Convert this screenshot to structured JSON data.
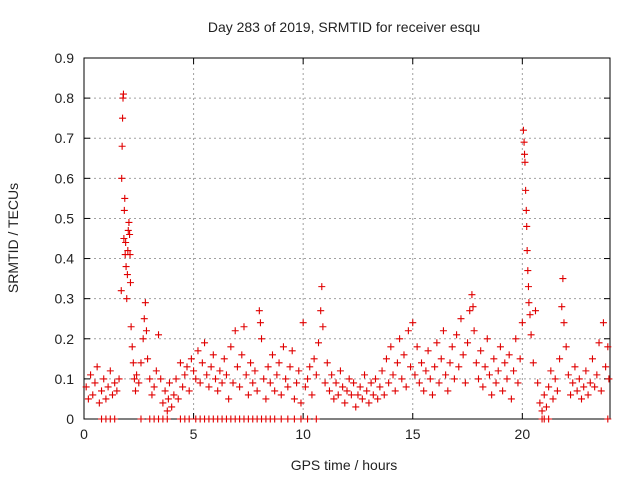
{
  "chart_data": {
    "type": "scatter",
    "title": "Day 283 of 2019, SRMTID for receiver esqu",
    "xlabel": "GPS time / hours",
    "ylabel": "SRMTID / TECUs",
    "xlim": [
      0,
      24
    ],
    "ylim": [
      0,
      0.9
    ],
    "xticks": [
      0,
      5,
      10,
      15,
      20
    ],
    "xtick_labels": [
      "0",
      "5",
      "10",
      "15",
      "20"
    ],
    "yticks": [
      0,
      0.1,
      0.2,
      0.3,
      0.4,
      0.5,
      0.6,
      0.7,
      0.8,
      0.9
    ],
    "ytick_labels": [
      "0",
      "0.1",
      "0.2",
      "0.3",
      "0.4",
      "0.5",
      "0.6",
      "0.7",
      "0.8",
      "0.9"
    ],
    "grid": true,
    "marker": "+",
    "series": [
      {
        "name": "SRMTID",
        "color": "#e00000",
        "points": [
          [
            0.1,
            0.08
          ],
          [
            0.2,
            0.05
          ],
          [
            0.3,
            0.11
          ],
          [
            0.4,
            0.06
          ],
          [
            0.5,
            0.09
          ],
          [
            0.6,
            0.13
          ],
          [
            0.7,
            0.04
          ],
          [
            0.8,
            0.07
          ],
          [
            0.9,
            0.1
          ],
          [
            1.0,
            0.05
          ],
          [
            1.1,
            0.08
          ],
          [
            1.2,
            0.12
          ],
          [
            1.3,
            0.06
          ],
          [
            1.4,
            0.09
          ],
          [
            1.5,
            0.07
          ],
          [
            1.6,
            0.1
          ],
          [
            1.7,
            0.32
          ],
          [
            1.72,
            0.6
          ],
          [
            1.74,
            0.68
          ],
          [
            1.76,
            0.75
          ],
          [
            1.78,
            0.8
          ],
          [
            1.8,
            0.81
          ],
          [
            1.82,
            0.45
          ],
          [
            1.84,
            0.52
          ],
          [
            1.86,
            0.55
          ],
          [
            1.88,
            0.41
          ],
          [
            1.9,
            0.44
          ],
          [
            1.92,
            0.38
          ],
          [
            1.95,
            0.3
          ],
          [
            1.98,
            0.36
          ],
          [
            2.0,
            0.42
          ],
          [
            2.02,
            0.47
          ],
          [
            2.05,
            0.49
          ],
          [
            2.08,
            0.46
          ],
          [
            2.1,
            0.41
          ],
          [
            2.12,
            0.34
          ],
          [
            2.15,
            0.23
          ],
          [
            2.2,
            0.18
          ],
          [
            2.25,
            0.14
          ],
          [
            2.3,
            0.1
          ],
          [
            2.35,
            0.07
          ],
          [
            2.4,
            0.11
          ],
          [
            2.5,
            0.09
          ],
          [
            2.6,
            0.14
          ],
          [
            2.7,
            0.2
          ],
          [
            2.75,
            0.25
          ],
          [
            2.8,
            0.29
          ],
          [
            2.85,
            0.22
          ],
          [
            2.9,
            0.15
          ],
          [
            3.0,
            0.1
          ],
          [
            3.1,
            0.06
          ],
          [
            3.2,
            0.08
          ],
          [
            3.3,
            0.12
          ],
          [
            3.4,
            0.21
          ],
          [
            3.5,
            0.1
          ],
          [
            3.6,
            0.04
          ],
          [
            3.7,
            0.07
          ],
          [
            3.8,
            0.02
          ],
          [
            3.85,
            0.05
          ],
          [
            3.9,
            0.09
          ],
          [
            4.0,
            0.03
          ],
          [
            4.1,
            0.06
          ],
          [
            4.2,
            0.1
          ],
          [
            4.3,
            0.05
          ],
          [
            4.4,
            0.14
          ],
          [
            4.5,
            0.08
          ],
          [
            4.6,
            0.11
          ],
          [
            4.7,
            0.13
          ],
          [
            4.8,
            0.07
          ],
          [
            4.9,
            0.15
          ],
          [
            5.0,
            0.12
          ],
          [
            5.1,
            0.1
          ],
          [
            5.2,
            0.17
          ],
          [
            5.3,
            0.09
          ],
          [
            5.4,
            0.14
          ],
          [
            5.5,
            0.19
          ],
          [
            5.6,
            0.11
          ],
          [
            5.7,
            0.08
          ],
          [
            5.8,
            0.13
          ],
          [
            5.9,
            0.16
          ],
          [
            6.0,
            0.1
          ],
          [
            6.1,
            0.07
          ],
          [
            6.2,
            0.12
          ],
          [
            6.3,
            0.09
          ],
          [
            6.4,
            0.15
          ],
          [
            6.5,
            0.11
          ],
          [
            6.6,
            0.05
          ],
          [
            6.7,
            0.18
          ],
          [
            6.8,
            0.09
          ],
          [
            6.9,
            0.22
          ],
          [
            7.0,
            0.13
          ],
          [
            7.1,
            0.08
          ],
          [
            7.2,
            0.16
          ],
          [
            7.3,
            0.23
          ],
          [
            7.4,
            0.11
          ],
          [
            7.5,
            0.06
          ],
          [
            7.6,
            0.14
          ],
          [
            7.7,
            0.09
          ],
          [
            7.8,
            0.12
          ],
          [
            7.9,
            0.07
          ],
          [
            8.0,
            0.27
          ],
          [
            8.05,
            0.24
          ],
          [
            8.1,
            0.2
          ],
          [
            8.2,
            0.1
          ],
          [
            8.3,
            0.05
          ],
          [
            8.4,
            0.13
          ],
          [
            8.5,
            0.09
          ],
          [
            8.6,
            0.16
          ],
          [
            8.7,
            0.07
          ],
          [
            8.8,
            0.11
          ],
          [
            8.9,
            0.14
          ],
          [
            9.0,
            0.06
          ],
          [
            9.1,
            0.18
          ],
          [
            9.2,
            0.1
          ],
          [
            9.3,
            0.08
          ],
          [
            9.4,
            0.13
          ],
          [
            9.5,
            0.17
          ],
          [
            9.6,
            0.05
          ],
          [
            9.7,
            0.09
          ],
          [
            9.8,
            0.12
          ],
          [
            9.9,
            0.04
          ],
          [
            10.0,
            0.24
          ],
          [
            10.1,
            0.08
          ],
          [
            10.2,
            0.1
          ],
          [
            10.3,
            0.13
          ],
          [
            10.4,
            0.06
          ],
          [
            10.5,
            0.15
          ],
          [
            10.6,
            0.11
          ],
          [
            10.7,
            0.19
          ],
          [
            10.8,
            0.27
          ],
          [
            10.85,
            0.33
          ],
          [
            10.9,
            0.23
          ],
          [
            11.0,
            0.09
          ],
          [
            11.1,
            0.14
          ],
          [
            11.2,
            0.07
          ],
          [
            11.3,
            0.11
          ],
          [
            11.4,
            0.05
          ],
          [
            11.5,
            0.09
          ],
          [
            11.6,
            0.06
          ],
          [
            11.7,
            0.12
          ],
          [
            11.8,
            0.08
          ],
          [
            11.9,
            0.04
          ],
          [
            12.0,
            0.07
          ],
          [
            12.1,
            0.1
          ],
          [
            12.2,
            0.06
          ],
          [
            12.3,
            0.09
          ],
          [
            12.4,
            0.03
          ],
          [
            12.5,
            0.06
          ],
          [
            12.6,
            0.08
          ],
          [
            12.7,
            0.05
          ],
          [
            12.8,
            0.11
          ],
          [
            12.9,
            0.07
          ],
          [
            13.0,
            0.04
          ],
          [
            13.1,
            0.09
          ],
          [
            13.2,
            0.06
          ],
          [
            13.3,
            0.1
          ],
          [
            13.4,
            0.05
          ],
          [
            13.5,
            0.08
          ],
          [
            13.6,
            0.12
          ],
          [
            13.7,
            0.06
          ],
          [
            13.8,
            0.15
          ],
          [
            13.9,
            0.09
          ],
          [
            14.0,
            0.18
          ],
          [
            14.1,
            0.11
          ],
          [
            14.2,
            0.07
          ],
          [
            14.3,
            0.14
          ],
          [
            14.4,
            0.2
          ],
          [
            14.5,
            0.1
          ],
          [
            14.6,
            0.16
          ],
          [
            14.7,
            0.08
          ],
          [
            14.8,
            0.22
          ],
          [
            14.9,
            0.13
          ],
          [
            15.0,
            0.24
          ],
          [
            15.1,
            0.11
          ],
          [
            15.2,
            0.18
          ],
          [
            15.3,
            0.09
          ],
          [
            15.4,
            0.14
          ],
          [
            15.5,
            0.07
          ],
          [
            15.6,
            0.12
          ],
          [
            15.7,
            0.17
          ],
          [
            15.8,
            0.1
          ],
          [
            15.9,
            0.06
          ],
          [
            16.0,
            0.13
          ],
          [
            16.1,
            0.19
          ],
          [
            16.2,
            0.09
          ],
          [
            16.3,
            0.15
          ],
          [
            16.4,
            0.22
          ],
          [
            16.5,
            0.11
          ],
          [
            16.6,
            0.07
          ],
          [
            16.7,
            0.14
          ],
          [
            16.8,
            0.18
          ],
          [
            16.9,
            0.1
          ],
          [
            17.0,
            0.21
          ],
          [
            17.1,
            0.13
          ],
          [
            17.2,
            0.25
          ],
          [
            17.3,
            0.16
          ],
          [
            17.4,
            0.09
          ],
          [
            17.5,
            0.19
          ],
          [
            17.6,
            0.27
          ],
          [
            17.7,
            0.31
          ],
          [
            17.75,
            0.28
          ],
          [
            17.8,
            0.22
          ],
          [
            17.9,
            0.14
          ],
          [
            18.0,
            0.1
          ],
          [
            18.1,
            0.17
          ],
          [
            18.2,
            0.08
          ],
          [
            18.3,
            0.13
          ],
          [
            18.4,
            0.2
          ],
          [
            18.5,
            0.11
          ],
          [
            18.6,
            0.06
          ],
          [
            18.7,
            0.15
          ],
          [
            18.8,
            0.09
          ],
          [
            18.9,
            0.12
          ],
          [
            19.0,
            0.18
          ],
          [
            19.1,
            0.07
          ],
          [
            19.2,
            0.14
          ],
          [
            19.3,
            0.1
          ],
          [
            19.4,
            0.16
          ],
          [
            19.5,
            0.05
          ],
          [
            19.6,
            0.12
          ],
          [
            19.7,
            0.2
          ],
          [
            19.8,
            0.09
          ],
          [
            19.9,
            0.15
          ],
          [
            20.0,
            0.24
          ],
          [
            20.05,
            0.72
          ],
          [
            20.08,
            0.69
          ],
          [
            20.1,
            0.66
          ],
          [
            20.12,
            0.64
          ],
          [
            20.15,
            0.57
          ],
          [
            20.18,
            0.52
          ],
          [
            20.2,
            0.48
          ],
          [
            20.22,
            0.42
          ],
          [
            20.25,
            0.37
          ],
          [
            20.28,
            0.33
          ],
          [
            20.3,
            0.29
          ],
          [
            20.35,
            0.26
          ],
          [
            20.4,
            0.21
          ],
          [
            20.5,
            0.14
          ],
          [
            20.6,
            0.27
          ],
          [
            20.7,
            0.09
          ],
          [
            20.8,
            0.04
          ],
          [
            20.9,
            0.02
          ],
          [
            21.0,
            0.06
          ],
          [
            21.1,
            0.03
          ],
          [
            21.2,
            0.08
          ],
          [
            21.3,
            0.12
          ],
          [
            21.4,
            0.05
          ],
          [
            21.5,
            0.1
          ],
          [
            21.6,
            0.07
          ],
          [
            21.7,
            0.15
          ],
          [
            21.8,
            0.28
          ],
          [
            21.85,
            0.35
          ],
          [
            21.9,
            0.24
          ],
          [
            22.0,
            0.18
          ],
          [
            22.1,
            0.11
          ],
          [
            22.2,
            0.06
          ],
          [
            22.3,
            0.09
          ],
          [
            22.4,
            0.13
          ],
          [
            22.5,
            0.07
          ],
          [
            22.6,
            0.1
          ],
          [
            22.7,
            0.05
          ],
          [
            22.8,
            0.08
          ],
          [
            22.9,
            0.12
          ],
          [
            23.0,
            0.06
          ],
          [
            23.1,
            0.09
          ],
          [
            23.2,
            0.15
          ],
          [
            23.3,
            0.08
          ],
          [
            23.4,
            0.11
          ],
          [
            23.5,
            0.19
          ],
          [
            23.6,
            0.07
          ],
          [
            23.7,
            0.24
          ],
          [
            23.8,
            0.13
          ],
          [
            23.9,
            0.18
          ],
          [
            23.95,
            0.1
          ],
          [
            0.8,
            0
          ],
          [
            1.0,
            0
          ],
          [
            1.2,
            0
          ],
          [
            1.4,
            0
          ],
          [
            2.6,
            0
          ],
          [
            3.0,
            0
          ],
          [
            3.2,
            0
          ],
          [
            3.4,
            0
          ],
          [
            3.6,
            0
          ],
          [
            3.8,
            0
          ],
          [
            4.4,
            0
          ],
          [
            4.6,
            0
          ],
          [
            4.8,
            0
          ],
          [
            5.1,
            0
          ],
          [
            5.3,
            0
          ],
          [
            5.5,
            0
          ],
          [
            5.7,
            0
          ],
          [
            5.9,
            0
          ],
          [
            6.1,
            0
          ],
          [
            6.3,
            0
          ],
          [
            6.5,
            0
          ],
          [
            6.7,
            0
          ],
          [
            6.9,
            0
          ],
          [
            7.1,
            0
          ],
          [
            7.3,
            0
          ],
          [
            7.5,
            0
          ],
          [
            7.7,
            0
          ],
          [
            7.9,
            0
          ],
          [
            8.1,
            0
          ],
          [
            8.3,
            0
          ],
          [
            8.5,
            0
          ],
          [
            8.7,
            0
          ],
          [
            9.0,
            0
          ],
          [
            9.3,
            0
          ],
          [
            9.6,
            0
          ],
          [
            9.9,
            0
          ],
          [
            10.2,
            0
          ],
          [
            10.6,
            0
          ],
          [
            20.9,
            0
          ],
          [
            21.0,
            0
          ],
          [
            21.2,
            0
          ],
          [
            23.9,
            0
          ]
        ]
      }
    ]
  }
}
